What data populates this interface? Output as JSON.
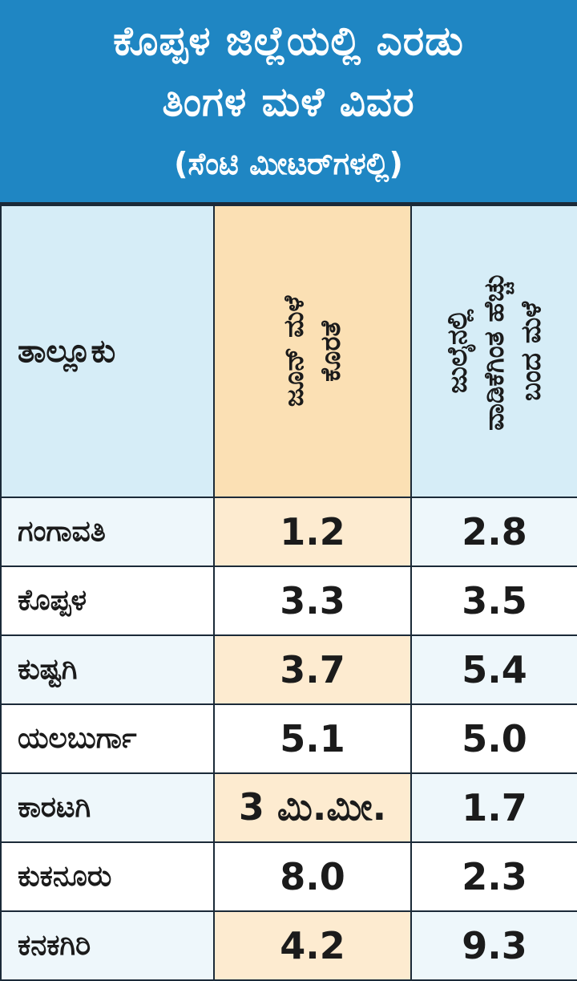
{
  "header": {
    "title_line1": "ಕೊಪ್ಪಳ ಜಿಲ್ಲೆಯಲ್ಲಿ ಎರಡು",
    "title_line2": "ತಿಂಗಳ ಮಳೆ ವಿವರ",
    "subtitle": "(ಸೆಂಟಿ ಮೀಟರ್‌ಗಳಲ್ಲಿ)"
  },
  "columns": {
    "taluk": "ತಾಲ್ಲೂಕು",
    "june_line1": "ಜೂನ್ ಮಳೆ",
    "june_line2": "ಕೊರತೆ",
    "july_line1": "ಜುಲೈನಲ್ಲಿ",
    "july_line2": "ವಾಡಿಕೆಗಿಂತ ಹೆಚ್ಚು",
    "july_line3": "ಬಂದ ಮಳೆ"
  },
  "rows": [
    {
      "taluk": "ಗಂಗಾವತಿ",
      "june": "1.2",
      "july": "2.8"
    },
    {
      "taluk": "ಕೊಪ್ಪಳ",
      "june": "3.3",
      "july": "3.5"
    },
    {
      "taluk": "ಕುಷ್ಟಗಿ",
      "june": "3.7",
      "july": "5.4"
    },
    {
      "taluk": "ಯಲಬುರ್ಗಾ",
      "june": "5.1",
      "july": "5.0"
    },
    {
      "taluk": "ಕಾರಟಗಿ",
      "june": "3 ಮಿ.ಮೀ.",
      "july": "1.7"
    },
    {
      "taluk": "ಕುಕನೂರು",
      "june": "8.0",
      "july": "2.3"
    },
    {
      "taluk": "ಕನಕಗಿರಿ",
      "june": "4.2",
      "july": "9.3"
    }
  ],
  "colors": {
    "header_bg": "#1f86c3",
    "column_header_bg": "#d6edf7",
    "june_column_bg": "#fbe0b4",
    "row_tint": "#eef7fb",
    "june_row_tint": "#fdebd0"
  }
}
